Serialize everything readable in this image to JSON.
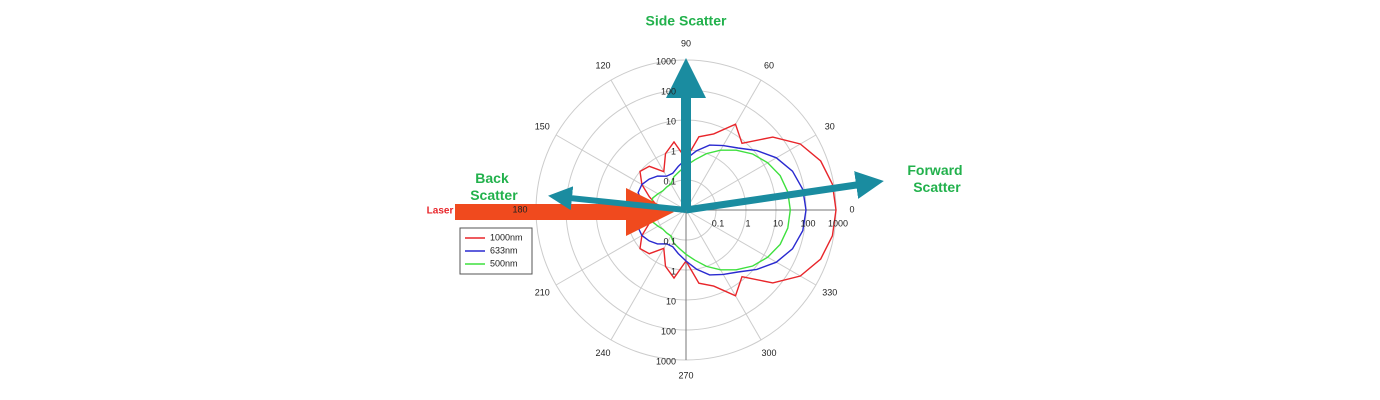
{
  "chart_data": {
    "type": "polar",
    "annotations": {
      "side": "Side Scatter",
      "forward": "Forward Scatter",
      "back": "Back Scatter",
      "laser": "Laser"
    },
    "rscale": "log",
    "rlim": [
      0.01,
      1000
    ],
    "rticks": [
      0.1,
      1,
      10,
      100,
      1000
    ],
    "thetaticks": [
      0,
      30,
      60,
      90,
      120,
      150,
      180,
      210,
      240,
      270,
      300,
      330
    ],
    "theta": [
      0,
      10,
      20,
      30,
      40,
      50,
      60,
      70,
      80,
      90,
      100,
      110,
      120,
      130,
      140,
      150,
      160,
      170,
      180,
      190,
      200,
      210,
      220,
      230,
      240,
      250,
      260,
      270,
      280,
      290,
      300,
      310,
      320,
      330,
      340,
      350
    ],
    "legend": "left",
    "series": [
      {
        "name": "1000nm",
        "color": "#e8252a",
        "values": [
          1000,
          900,
          600,
          250,
          60,
          8,
          20,
          5,
          3,
          0.5,
          2,
          1,
          0.3,
          0.8,
          1,
          0.5,
          0.2,
          0.1,
          0.1,
          0.1,
          0.2,
          0.5,
          1,
          0.8,
          0.3,
          1,
          2,
          0.5,
          3,
          5,
          20,
          8,
          60,
          250,
          600,
          900
        ]
      },
      {
        "name": "633nm",
        "color": "#2a2ad0",
        "values": [
          100,
          90,
          60,
          30,
          12,
          5,
          3,
          2,
          1,
          0.5,
          0.3,
          0.2,
          0.2,
          0.3,
          0.4,
          0.5,
          0.5,
          0.3,
          0.2,
          0.3,
          0.5,
          0.5,
          0.4,
          0.3,
          0.2,
          0.2,
          0.3,
          0.5,
          1,
          2,
          3,
          5,
          12,
          30,
          60,
          90
        ]
      },
      {
        "name": "500nm",
        "color": "#3ee03e",
        "values": [
          30,
          28,
          22,
          14,
          8,
          4,
          2,
          1,
          0.5,
          0.3,
          0.2,
          0.15,
          0.1,
          0.1,
          0.1,
          0.12,
          0.15,
          0.15,
          0.15,
          0.15,
          0.15,
          0.12,
          0.1,
          0.1,
          0.1,
          0.15,
          0.2,
          0.3,
          0.5,
          1,
          2,
          4,
          8,
          14,
          22,
          28
        ]
      }
    ]
  }
}
